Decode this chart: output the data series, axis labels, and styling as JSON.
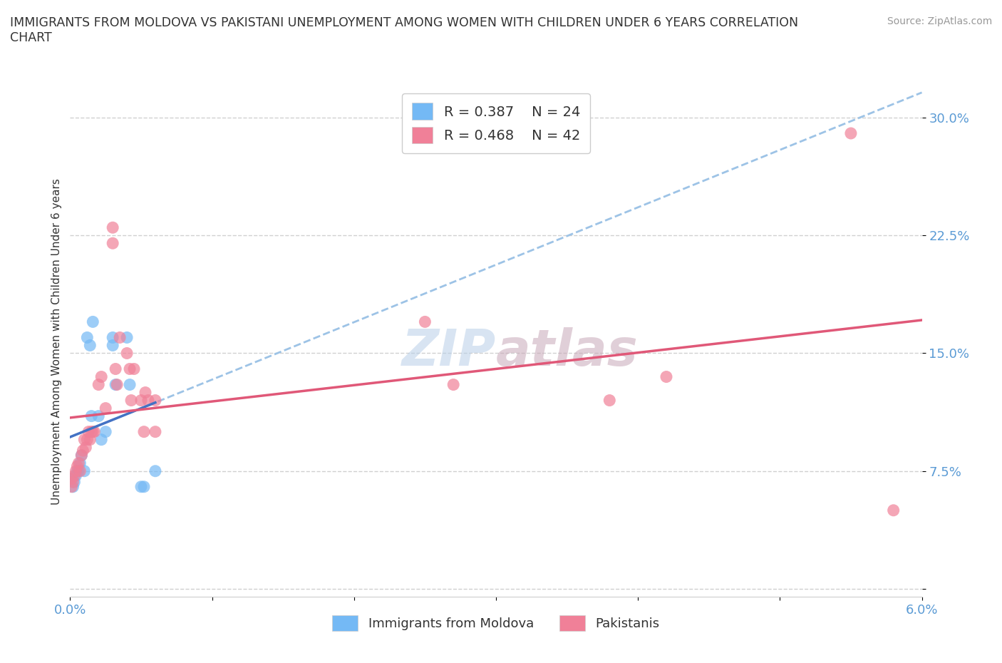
{
  "title": "IMMIGRANTS FROM MOLDOVA VS PAKISTANI UNEMPLOYMENT AMONG WOMEN WITH CHILDREN UNDER 6 YEARS CORRELATION\nCHART",
  "source_text": "Source: ZipAtlas.com",
  "ylabel": "Unemployment Among Women with Children Under 6 years",
  "xlim": [
    0.0,
    0.06
  ],
  "ylim": [
    -0.005,
    0.32
  ],
  "yticks": [
    0.0,
    0.075,
    0.15,
    0.225,
    0.3
  ],
  "ytick_labels": [
    "",
    "7.5%",
    "15.0%",
    "22.5%",
    "30.0%"
  ],
  "xticks": [
    0.0,
    0.01,
    0.02,
    0.03,
    0.04,
    0.05,
    0.06
  ],
  "xtick_labels": [
    "0.0%",
    "",
    "",
    "",
    "",
    "",
    "6.0%"
  ],
  "r_moldova": 0.387,
  "n_moldova": 24,
  "r_pakistani": 0.468,
  "n_pakistani": 42,
  "color_moldova": "#74b9f5",
  "color_pakistani": "#f08098",
  "color_axis_labels": "#5b9bd5",
  "watermark": "ZIPAtlas",
  "moldova_x": [
    0.0001,
    0.0002,
    0.0003,
    0.0004,
    0.0005,
    0.0006,
    0.0007,
    0.0008,
    0.001,
    0.0012,
    0.0014,
    0.0015,
    0.0016,
    0.002,
    0.0022,
    0.0025,
    0.003,
    0.003,
    0.0032,
    0.004,
    0.0042,
    0.005,
    0.0052,
    0.006
  ],
  "moldova_y": [
    0.07,
    0.065,
    0.068,
    0.072,
    0.075,
    0.075,
    0.08,
    0.085,
    0.075,
    0.16,
    0.155,
    0.11,
    0.17,
    0.11,
    0.095,
    0.1,
    0.155,
    0.16,
    0.13,
    0.16,
    0.13,
    0.065,
    0.065,
    0.075
  ],
  "pakistani_x": [
    0.0001,
    0.0001,
    0.0002,
    0.0003,
    0.0004,
    0.0005,
    0.0006,
    0.0007,
    0.0008,
    0.0009,
    0.001,
    0.0011,
    0.0012,
    0.0013,
    0.0014,
    0.0015,
    0.0016,
    0.0017,
    0.002,
    0.0022,
    0.0025,
    0.003,
    0.003,
    0.0032,
    0.0033,
    0.0035,
    0.004,
    0.0042,
    0.0043,
    0.0045,
    0.005,
    0.0052,
    0.0053,
    0.0055,
    0.006,
    0.006,
    0.025,
    0.027,
    0.038,
    0.042,
    0.055,
    0.058
  ],
  "pakistani_y": [
    0.065,
    0.07,
    0.068,
    0.072,
    0.075,
    0.078,
    0.08,
    0.075,
    0.085,
    0.088,
    0.095,
    0.09,
    0.095,
    0.1,
    0.095,
    0.1,
    0.1,
    0.1,
    0.13,
    0.135,
    0.115,
    0.23,
    0.22,
    0.14,
    0.13,
    0.16,
    0.15,
    0.14,
    0.12,
    0.14,
    0.12,
    0.1,
    0.125,
    0.12,
    0.12,
    0.1,
    0.17,
    0.13,
    0.12,
    0.135,
    0.29,
    0.05
  ],
  "solid_line_color_moldova": "#4472c4",
  "dashed_line_color": "#9dc3e6",
  "solid_line_color_pakistani": "#e05878"
}
